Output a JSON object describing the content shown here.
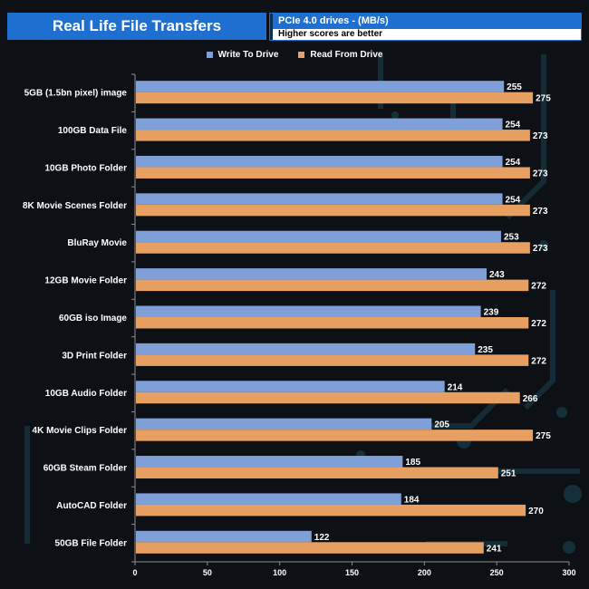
{
  "header": {
    "title": "Real Life File Transfers",
    "subtitle": "PCIe 4.0 drives - (MB/s)",
    "note": "Higher scores are better"
  },
  "colors": {
    "write": "#7f9fd8",
    "read": "#e7a062",
    "header_blue": "#1f6fd0"
  },
  "chart_data": {
    "type": "bar",
    "orientation": "horizontal",
    "categories": [
      "5GB (1.5bn pixel) image",
      "100GB Data File",
      "10GB Photo Folder",
      "8K Movie Scenes Folder",
      "BluRay Movie",
      "12GB Movie Folder",
      "60GB iso Image",
      "3D Print Folder",
      "10GB Audio Folder",
      "4K Movie Clips Folder",
      "60GB Steam Folder",
      "AutoCAD Folder",
      "50GB File Folder"
    ],
    "series": [
      {
        "name": "Write To  Drive",
        "values": [
          255,
          254,
          254,
          254,
          253,
          243,
          239,
          235,
          214,
          205,
          185,
          184,
          122
        ]
      },
      {
        "name": "Read From  Drive",
        "values": [
          275,
          273,
          273,
          273,
          273,
          272,
          272,
          272,
          266,
          275,
          251,
          270,
          241
        ]
      }
    ],
    "xlim": [
      0,
      300
    ],
    "xticks": [
      0,
      50,
      100,
      150,
      200,
      250,
      300
    ],
    "legend_position": "top-center",
    "grid": false
  }
}
